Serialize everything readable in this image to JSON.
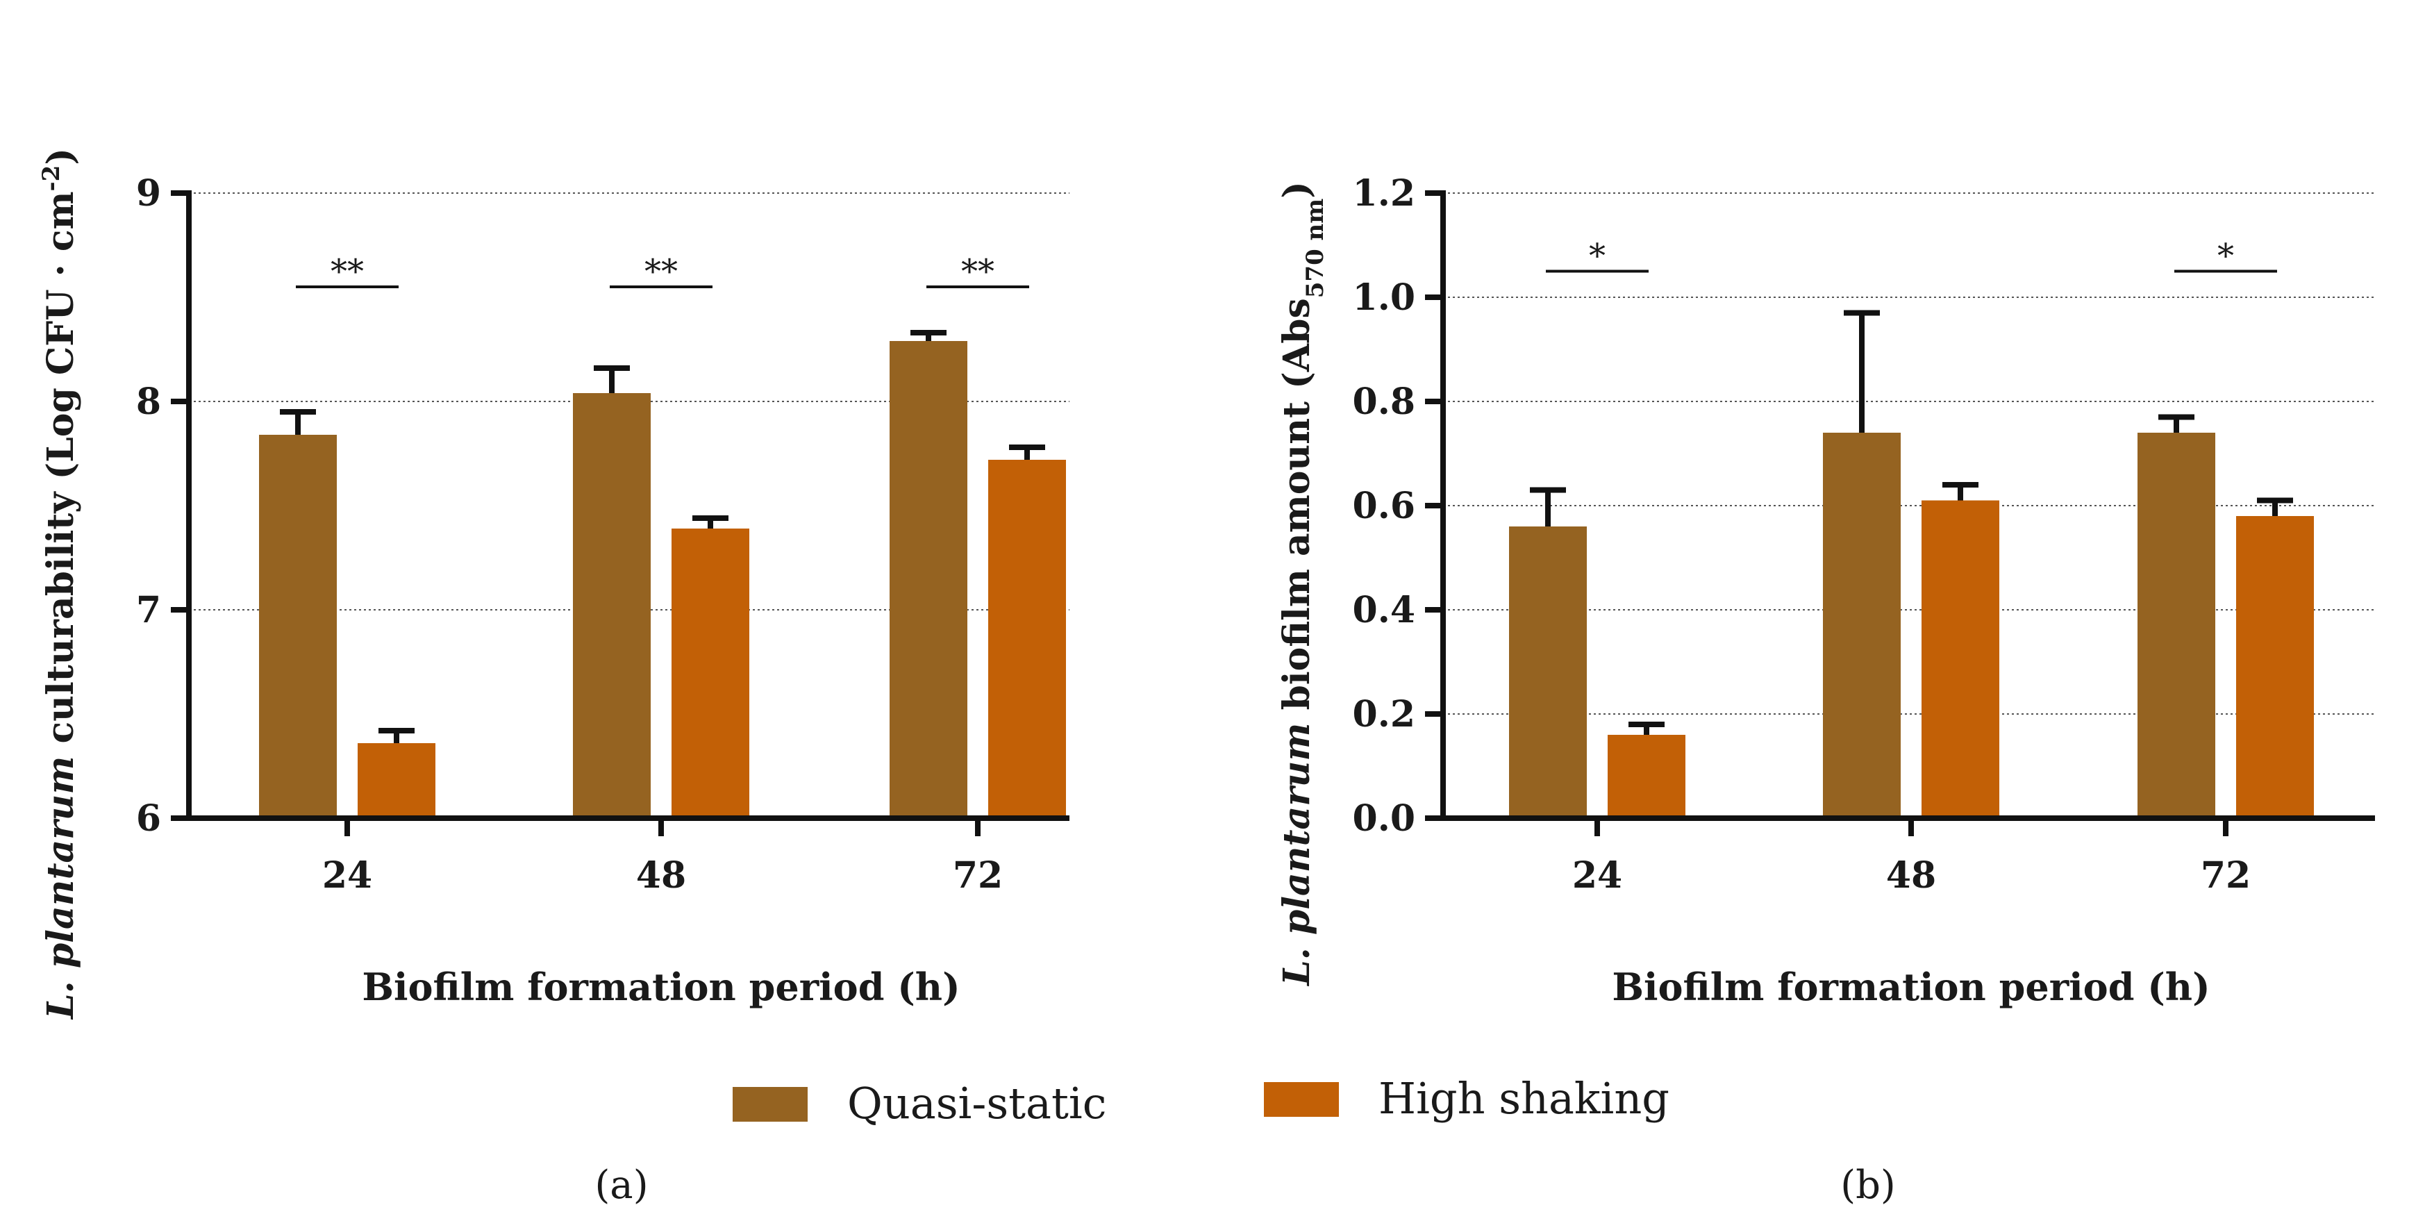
{
  "chart_data": [
    {
      "type": "bar",
      "panel_label": "(a)",
      "categories": [
        "24",
        "48",
        "72"
      ],
      "xlabel": "Biofilm formation period (h)",
      "ylabel_italic": "L. plantarum",
      "ylabel_rest": " culturability (Log CFU · cm",
      "ylabel_sup": "-2",
      "ylabel_close": ")",
      "ylim": [
        6,
        9
      ],
      "yticks": [
        6,
        7,
        8,
        9
      ],
      "ytick_labels": [
        "6",
        "7",
        "8",
        "9"
      ],
      "grid": true,
      "series": [
        {
          "name": "Quasi-static",
          "color": "#956321",
          "values": [
            7.84,
            8.04,
            8.29
          ],
          "errors": [
            0.11,
            0.12,
            0.04
          ]
        },
        {
          "name": "High shaking",
          "color": "#c26006",
          "values": [
            6.36,
            7.39,
            7.72
          ],
          "errors": [
            0.06,
            0.05,
            0.06
          ]
        }
      ],
      "significance": [
        {
          "category_index": 0,
          "label": "**",
          "y": 8.55
        },
        {
          "category_index": 1,
          "label": "**",
          "y": 8.55
        },
        {
          "category_index": 2,
          "label": "**",
          "y": 8.55
        }
      ]
    },
    {
      "type": "bar",
      "panel_label": "(b)",
      "categories": [
        "24",
        "48",
        "72"
      ],
      "xlabel": "Biofilm formation period (h)",
      "ylabel_italic": "L. plantarum",
      "ylabel_rest": " biofilm amount (Abs",
      "ylabel_sub": "570 nm",
      "ylabel_close": ")",
      "ylim": [
        0,
        1.2
      ],
      "yticks": [
        0,
        0.2,
        0.4,
        0.6,
        0.8,
        1.0,
        1.2
      ],
      "ytick_labels": [
        "0.0",
        "0.2",
        "0.4",
        "0.6",
        "0.8",
        "1.0",
        "1.2"
      ],
      "grid": true,
      "series": [
        {
          "name": "Quasi-static",
          "color": "#956321",
          "values": [
            0.56,
            0.74,
            0.74
          ],
          "errors": [
            0.07,
            0.23,
            0.03
          ]
        },
        {
          "name": "High shaking",
          "color": "#c26006",
          "values": [
            0.16,
            0.61,
            0.58
          ],
          "errors": [
            0.02,
            0.03,
            0.03
          ]
        }
      ],
      "significance": [
        {
          "category_index": 0,
          "label": "*",
          "y": 1.05
        },
        {
          "category_index": 2,
          "label": "*",
          "y": 1.05
        }
      ]
    }
  ],
  "legend": {
    "placement": "bottom-center",
    "items": [
      {
        "label": "Quasi-static",
        "color": "#956321"
      },
      {
        "label": "High shaking",
        "color": "#c26006"
      }
    ]
  }
}
